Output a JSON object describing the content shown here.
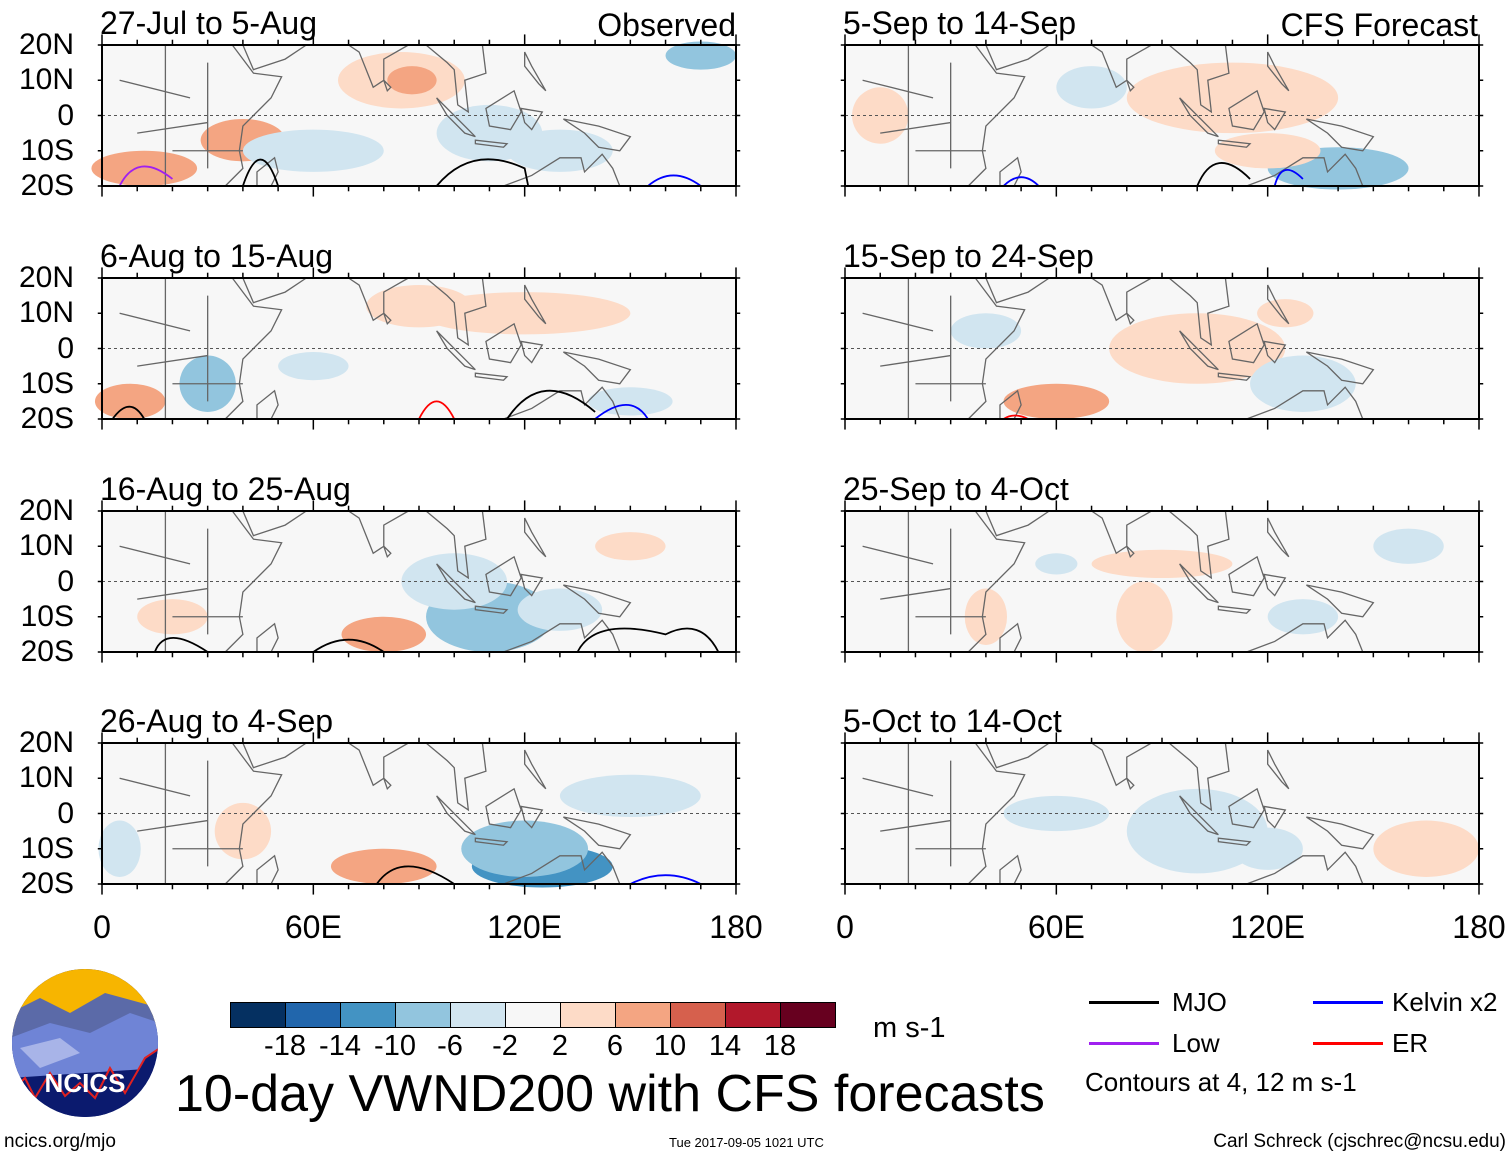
{
  "figure": {
    "title": "10-day VWND200 with CFS forecasts",
    "website": "ncics.org/mjo",
    "timestamp": "Tue 2017-09-05 1021 UTC",
    "author": "Carl Schreck (cjschrec@ncsu.edu)",
    "logo_text": "NCICS"
  },
  "columns": {
    "left_label": "Observed",
    "right_label": "CFS Forecast"
  },
  "panels_left": [
    "27-Jul to 5-Aug",
    "6-Aug to 15-Aug",
    "16-Aug to 25-Aug",
    "26-Aug to 4-Sep"
  ],
  "panels_right": [
    "5-Sep to 14-Sep",
    "15-Sep to 24-Sep",
    "25-Sep to 4-Oct",
    "5-Oct to 14-Oct"
  ],
  "lat_ticks": [
    "20N",
    "10N",
    "0",
    "10S",
    "20S"
  ],
  "lon_ticks": [
    "0",
    "60E",
    "120E",
    "180"
  ],
  "colorbar": {
    "units": "m s-1",
    "labels": [
      "-18",
      "-14",
      "-10",
      "-6",
      "-2",
      "2",
      "6",
      "10",
      "14",
      "18"
    ],
    "colors": [
      "#053061",
      "#2166ac",
      "#4393c3",
      "#92c5de",
      "#d1e5f0",
      "#f7f7f7",
      "#fddbc7",
      "#f4a582",
      "#d6604d",
      "#b2182b",
      "#67001f"
    ]
  },
  "legend": {
    "items": [
      {
        "label": "MJO",
        "color": "#000000"
      },
      {
        "label": "Kelvin x2",
        "color": "#0000ff"
      },
      {
        "label": "Low",
        "color": "#a020f0"
      },
      {
        "label": "ER",
        "color": "#ff0000"
      }
    ],
    "note": "Contours at 4, 12 m s-1"
  }
}
